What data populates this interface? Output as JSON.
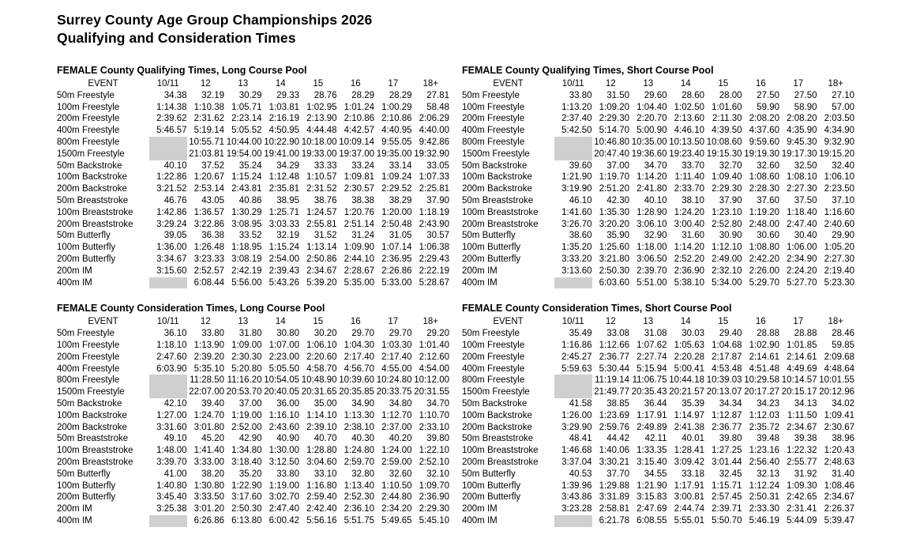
{
  "page": {
    "title_line1": "Surrey County Age Group Championships 2026",
    "title_line2": "Qualifying and Consideration Times"
  },
  "colors": {
    "blank_cell": "#d0cece"
  },
  "columns": [
    "EVENT",
    "10/11",
    "12",
    "13",
    "14",
    "15",
    "16",
    "17",
    "18+"
  ],
  "tables": [
    {
      "title": "FEMALE County Qualifying Times, Long Course Pool",
      "rows": [
        {
          "event": "50m Freestyle",
          "times": [
            "34.38",
            "32.19",
            "30.29",
            "29.33",
            "28.76",
            "28.29",
            "28.29",
            "27.81"
          ]
        },
        {
          "event": "100m Freestyle",
          "times": [
            "1:14.38",
            "1:10.38",
            "1:05.71",
            "1:03.81",
            "1:02.95",
            "1:01.24",
            "1:00.29",
            "58.48"
          ]
        },
        {
          "event": "200m Freestyle",
          "times": [
            "2:39.62",
            "2:31.62",
            "2:23.14",
            "2:16.19",
            "2:13.90",
            "2:10.86",
            "2:10.86",
            "2:06.29"
          ]
        },
        {
          "event": "400m Freestyle",
          "times": [
            "5:46.57",
            "5:19.14",
            "5:05.52",
            "4:50.95",
            "4:44.48",
            "4:42.57",
            "4:40.95",
            "4:40.00"
          ]
        },
        {
          "event": "800m Freestyle",
          "times": [
            null,
            "10:55.71",
            "10:44.00",
            "10:22.90",
            "10:18.00",
            "10:09.14",
            "9:55.05",
            "9:42.86"
          ]
        },
        {
          "event": "1500m Freestyle",
          "times": [
            null,
            "21:03.81",
            "19:54.00",
            "19:41.00",
            "19:33.00",
            "19:37.00",
            "19:35.00",
            "19:32.90"
          ]
        },
        {
          "event": "50m Backstroke",
          "times": [
            "40.10",
            "37.52",
            "35.24",
            "34.29",
            "33.33",
            "33.24",
            "33.14",
            "33.05"
          ]
        },
        {
          "event": "100m Backstroke",
          "times": [
            "1:22.86",
            "1:20.67",
            "1:15.24",
            "1:12.48",
            "1:10.57",
            "1:09.81",
            "1:09.24",
            "1:07.33"
          ]
        },
        {
          "event": "200m Backstroke",
          "times": [
            "3:21.52",
            "2:53.14",
            "2:43.81",
            "2:35.81",
            "2:31.52",
            "2:30.57",
            "2:29.52",
            "2:25.81"
          ]
        },
        {
          "event": "50m Breaststroke",
          "times": [
            "46.76",
            "43.05",
            "40.86",
            "38.95",
            "38.76",
            "38.38",
            "38.29",
            "37.90"
          ]
        },
        {
          "event": "100m Breaststroke",
          "times": [
            "1:42.86",
            "1:36.57",
            "1:30.29",
            "1:25.71",
            "1:24.57",
            "1:20.76",
            "1:20.00",
            "1:18.19"
          ]
        },
        {
          "event": "200m Breaststroke",
          "times": [
            "3:29.24",
            "3:22.86",
            "3:08.95",
            "3:03.33",
            "2:55.81",
            "2:51.14",
            "2:50.48",
            "2:43.90"
          ]
        },
        {
          "event": "50m Butterfly",
          "times": [
            "39.05",
            "36.38",
            "33.52",
            "32.19",
            "31.52",
            "31.24",
            "31.05",
            "30.57"
          ]
        },
        {
          "event": "100m Butterfly",
          "times": [
            "1:36.00",
            "1:26.48",
            "1:18.95",
            "1:15.24",
            "1:13.14",
            "1:09.90",
            "1:07.14",
            "1:06.38"
          ]
        },
        {
          "event": "200m Butterfly",
          "times": [
            "3:34.67",
            "3:23.33",
            "3:08.19",
            "2:54.00",
            "2:50.86",
            "2:44.10",
            "2:36.95",
            "2:29.43"
          ]
        },
        {
          "event": "200m IM",
          "times": [
            "3:15.60",
            "2:52.57",
            "2:42.19",
            "2:39.43",
            "2:34.67",
            "2:28.67",
            "2:26.86",
            "2:22.19"
          ]
        },
        {
          "event": "400m IM",
          "times": [
            null,
            "6:08.44",
            "5:56.00",
            "5:43.26",
            "5:39.20",
            "5:35.00",
            "5:33.00",
            "5:28.67"
          ]
        }
      ]
    },
    {
      "title": "FEMALE County Qualifying Times, Short Course Pool",
      "rows": [
        {
          "event": "50m Freestyle",
          "times": [
            "33.80",
            "31.50",
            "29.60",
            "28.60",
            "28.00",
            "27.50",
            "27.50",
            "27.10"
          ]
        },
        {
          "event": "100m Freestyle",
          "times": [
            "1:13.20",
            "1:09.20",
            "1:04.40",
            "1:02.50",
            "1:01.60",
            "59.90",
            "58.90",
            "57.00"
          ]
        },
        {
          "event": "200m Freestyle",
          "times": [
            "2:37.40",
            "2:29.30",
            "2:20.70",
            "2:13.60",
            "2:11.30",
            "2:08.20",
            "2:08.20",
            "2:03.50"
          ]
        },
        {
          "event": "400m Freestyle",
          "times": [
            "5:42.50",
            "5:14.70",
            "5:00.90",
            "4:46.10",
            "4:39.50",
            "4:37.60",
            "4:35.90",
            "4:34.90"
          ]
        },
        {
          "event": "800m Freestyle",
          "times": [
            null,
            "10:46.80",
            "10:35.00",
            "10:13.50",
            "10:08.60",
            "9:59.60",
            "9:45.30",
            "9:32.90"
          ]
        },
        {
          "event": "1500m Freestyle",
          "times": [
            null,
            "20:47.40",
            "19:36.60",
            "19:23.40",
            "19:15.30",
            "19:19.30",
            "19:17.30",
            "19:15.20"
          ]
        },
        {
          "event": "50m Backstroke",
          "times": [
            "39.60",
            "37.00",
            "34.70",
            "33.70",
            "32.70",
            "32.60",
            "32.50",
            "32.40"
          ]
        },
        {
          "event": "100m Backstroke",
          "times": [
            "1:21.90",
            "1:19.70",
            "1:14.20",
            "1:11.40",
            "1:09.40",
            "1:08.60",
            "1:08.10",
            "1:06.10"
          ]
        },
        {
          "event": "200m Backstroke",
          "times": [
            "3:19.90",
            "2:51.20",
            "2:41.80",
            "2:33.70",
            "2:29.30",
            "2:28.30",
            "2:27.30",
            "2:23.50"
          ]
        },
        {
          "event": "50m Breaststroke",
          "times": [
            "46.10",
            "42.30",
            "40.10",
            "38.10",
            "37.90",
            "37.60",
            "37.50",
            "37.10"
          ]
        },
        {
          "event": "100m Breaststroke",
          "times": [
            "1:41.60",
            "1:35.30",
            "1:28.90",
            "1:24.20",
            "1:23.10",
            "1:19.20",
            "1:18.40",
            "1:16.60"
          ]
        },
        {
          "event": "200m Breaststroke",
          "times": [
            "3:26.70",
            "3:20.20",
            "3:06.10",
            "3:00.40",
            "2:52.80",
            "2:48.00",
            "2:47.40",
            "2:40.60"
          ]
        },
        {
          "event": "50m Butterfly",
          "times": [
            "38.60",
            "35.90",
            "32.90",
            "31.60",
            "30.90",
            "30.60",
            "30.40",
            "29.90"
          ]
        },
        {
          "event": "100m Butterfly",
          "times": [
            "1:35.20",
            "1:25.60",
            "1:18.00",
            "1:14.20",
            "1:12.10",
            "1:08.80",
            "1:06.00",
            "1:05.20"
          ]
        },
        {
          "event": "200m Butterfly",
          "times": [
            "3:33.20",
            "3:21.80",
            "3:06.50",
            "2:52.20",
            "2:49.00",
            "2:42.20",
            "2:34.90",
            "2:27.30"
          ]
        },
        {
          "event": "200m IM",
          "times": [
            "3:13.60",
            "2:50.30",
            "2:39.70",
            "2:36.90",
            "2:32.10",
            "2:26.00",
            "2:24.20",
            "2:19.40"
          ]
        },
        {
          "event": "400m IM",
          "times": [
            null,
            "6:03.60",
            "5:51.00",
            "5:38.10",
            "5:34.00",
            "5:29.70",
            "5:27.70",
            "5:23.30"
          ]
        }
      ]
    },
    {
      "title": "FEMALE County Consideration Times, Long Course Pool",
      "rows": [
        {
          "event": "50m Freestyle",
          "times": [
            "36.10",
            "33.80",
            "31.80",
            "30.80",
            "30.20",
            "29.70",
            "29.70",
            "29.20"
          ]
        },
        {
          "event": "100m Freestyle",
          "times": [
            "1:18.10",
            "1:13.90",
            "1:09.00",
            "1:07.00",
            "1:06.10",
            "1:04.30",
            "1:03.30",
            "1:01.40"
          ]
        },
        {
          "event": "200m Freestyle",
          "times": [
            "2:47.60",
            "2:39.20",
            "2:30.30",
            "2:23.00",
            "2:20.60",
            "2:17.40",
            "2:17.40",
            "2:12.60"
          ]
        },
        {
          "event": "400m Freestyle",
          "times": [
            "6:03.90",
            "5:35.10",
            "5:20.80",
            "5:05.50",
            "4:58.70",
            "4:56.70",
            "4:55.00",
            "4:54.00"
          ]
        },
        {
          "event": "800m Freestyle",
          "times": [
            null,
            "11:28.50",
            "11:16.20",
            "10:54.05",
            "10:48.90",
            "10:39.60",
            "10:24.80",
            "10:12.00"
          ]
        },
        {
          "event": "1500m Freestyle",
          "times": [
            null,
            "22:07.00",
            "20:53.70",
            "20:40.05",
            "20:31.65",
            "20:35.85",
            "20:33.75",
            "20:31.55"
          ]
        },
        {
          "event": "50m Backstroke",
          "times": [
            "42.10",
            "39.40",
            "37.00",
            "36.00",
            "35.00",
            "34.90",
            "34.80",
            "34.70"
          ]
        },
        {
          "event": "100m Backstroke",
          "times": [
            "1:27.00",
            "1:24.70",
            "1:19.00",
            "1:16.10",
            "1:14.10",
            "1:13.30",
            "1:12.70",
            "1:10.70"
          ]
        },
        {
          "event": "200m Backstroke",
          "times": [
            "3:31.60",
            "3:01.80",
            "2:52.00",
            "2:43.60",
            "2:39.10",
            "2:38.10",
            "2:37.00",
            "2:33.10"
          ]
        },
        {
          "event": "50m Breaststroke",
          "times": [
            "49.10",
            "45.20",
            "42.90",
            "40.90",
            "40.70",
            "40.30",
            "40.20",
            "39.80"
          ]
        },
        {
          "event": "100m Breaststroke",
          "times": [
            "1:48.00",
            "1:41.40",
            "1:34.80",
            "1:30.00",
            "1:28.80",
            "1:24.80",
            "1:24.00",
            "1:22.10"
          ]
        },
        {
          "event": "200m Breaststroke",
          "times": [
            "3:39.70",
            "3:33.00",
            "3:18.40",
            "3:12.50",
            "3:04.60",
            "2:59.70",
            "2:59.00",
            "2:52.10"
          ]
        },
        {
          "event": "50m Butterfly",
          "times": [
            "41.00",
            "38.20",
            "35.20",
            "33.80",
            "33.10",
            "32.80",
            "32.60",
            "32.10"
          ]
        },
        {
          "event": "100m Butterfly",
          "times": [
            "1:40.80",
            "1:30.80",
            "1:22.90",
            "1:19.00",
            "1:16.80",
            "1:13.40",
            "1:10.50",
            "1:09.70"
          ]
        },
        {
          "event": "200m Butterfly",
          "times": [
            "3:45.40",
            "3:33.50",
            "3:17.60",
            "3:02.70",
            "2:59.40",
            "2:52.30",
            "2:44.80",
            "2:36.90"
          ]
        },
        {
          "event": "200m IM",
          "times": [
            "3:25.38",
            "3:01.20",
            "2:50.30",
            "2:47.40",
            "2:42.40",
            "2:36.10",
            "2:34.20",
            "2:29.30"
          ]
        },
        {
          "event": "400m IM",
          "times": [
            null,
            "6:26.86",
            "6:13.80",
            "6:00.42",
            "5:56.16",
            "5:51.75",
            "5:49.65",
            "5:45.10"
          ]
        }
      ]
    },
    {
      "title": "FEMALE County Consideration Times, Short Course Pool",
      "rows": [
        {
          "event": "50m Freestyle",
          "times": [
            "35.49",
            "33.08",
            "31.08",
            "30.03",
            "29.40",
            "28.88",
            "28.88",
            "28.46"
          ]
        },
        {
          "event": "100m Freestyle",
          "times": [
            "1:16.86",
            "1:12.66",
            "1:07.62",
            "1:05.63",
            "1:04.68",
            "1:02.90",
            "1:01.85",
            "59.85"
          ]
        },
        {
          "event": "200m Freestyle",
          "times": [
            "2:45.27",
            "2:36.77",
            "2:27.74",
            "2:20.28",
            "2:17.87",
            "2:14.61",
            "2:14.61",
            "2:09.68"
          ]
        },
        {
          "event": "400m Freestyle",
          "times": [
            "5:59.63",
            "5:30.44",
            "5:15.94",
            "5:00.41",
            "4:53.48",
            "4:51.48",
            "4:49.69",
            "4:48.64"
          ]
        },
        {
          "event": "800m Freestyle",
          "times": [
            null,
            "11:19.14",
            "11:06.75",
            "10:44.18",
            "10:39.03",
            "10:29.58",
            "10:14.57",
            "10:01.55"
          ]
        },
        {
          "event": "1500m Freestyle",
          "times": [
            null,
            "21:49.77",
            "20:35.43",
            "20:21.57",
            "20:13.07",
            "20:17.27",
            "20:15.17",
            "20:12.96"
          ]
        },
        {
          "event": "50m Backstroke",
          "times": [
            "41.58",
            "38.85",
            "36.44",
            "35.39",
            "34.34",
            "34.23",
            "34.13",
            "34.02"
          ]
        },
        {
          "event": "100m Backstroke",
          "times": [
            "1:26.00",
            "1:23.69",
            "1:17.91",
            "1:14.97",
            "1:12.87",
            "1:12.03",
            "1:11.50",
            "1:09.41"
          ]
        },
        {
          "event": "200m Backstroke",
          "times": [
            "3:29.90",
            "2:59.76",
            "2:49.89",
            "2:41.38",
            "2:36.77",
            "2:35.72",
            "2:34.67",
            "2:30.67"
          ]
        },
        {
          "event": "50m Breaststroke",
          "times": [
            "48.41",
            "44.42",
            "42.11",
            "40.01",
            "39.80",
            "39.48",
            "39.38",
            "38.96"
          ]
        },
        {
          "event": "100m Breaststroke",
          "times": [
            "1:46.68",
            "1:40.06",
            "1:33.35",
            "1:28.41",
            "1:27.25",
            "1:23.16",
            "1:22.32",
            "1:20.43"
          ]
        },
        {
          "event": "200m Breaststroke",
          "times": [
            "3:37.04",
            "3:30.21",
            "3:15.40",
            "3:09.42",
            "3:01.44",
            "2:56.40",
            "2:55.77",
            "2:48.63"
          ]
        },
        {
          "event": "50m Butterfly",
          "times": [
            "40.53",
            "37.70",
            "34.55",
            "33.18",
            "32.45",
            "32.13",
            "31.92",
            "31.40"
          ]
        },
        {
          "event": "100m Butterfly",
          "times": [
            "1:39.96",
            "1:29.88",
            "1:21.90",
            "1:17.91",
            "1:15.71",
            "1:12.24",
            "1:09.30",
            "1:08.46"
          ]
        },
        {
          "event": "200m Butterfly",
          "times": [
            "3:43.86",
            "3:31.89",
            "3:15.83",
            "3:00.81",
            "2:57.45",
            "2:50.31",
            "2:42.65",
            "2:34.67"
          ]
        },
        {
          "event": "200m IM",
          "times": [
            "3:23.28",
            "2:58.81",
            "2:47.69",
            "2:44.74",
            "2:39.71",
            "2:33.30",
            "2:31.41",
            "2:26.37"
          ]
        },
        {
          "event": "400m IM",
          "times": [
            null,
            "6:21.78",
            "6:08.55",
            "5:55.01",
            "5:50.70",
            "5:46.19",
            "5:44.09",
            "5:39.47"
          ]
        }
      ]
    }
  ]
}
